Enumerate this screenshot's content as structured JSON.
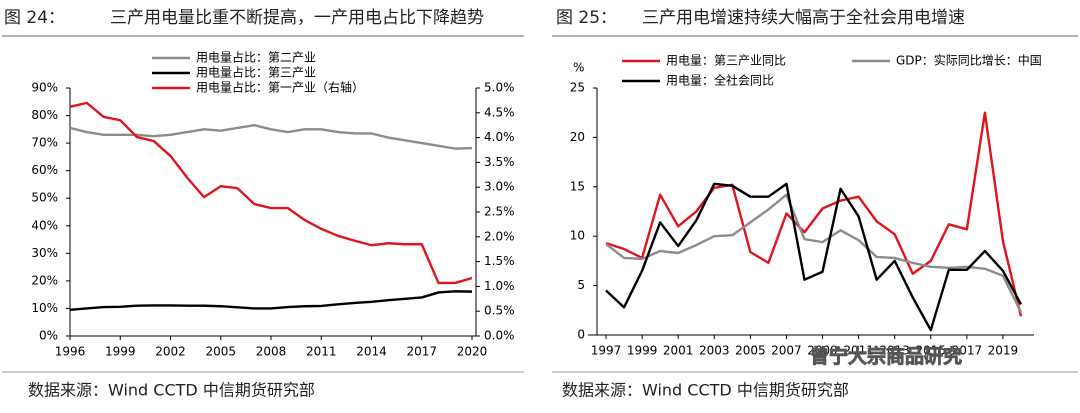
{
  "chart_data": [
    {
      "type": "line",
      "figure_label": "图 24：",
      "title": "三产用电量比重不断提高，一产用电占比下降趋势",
      "x": [
        1996,
        1997,
        1998,
        1999,
        2000,
        2001,
        2002,
        2003,
        2004,
        2005,
        2006,
        2007,
        2008,
        2009,
        2010,
        2011,
        2012,
        2013,
        2014,
        2015,
        2016,
        2017,
        2018,
        2019,
        2020
      ],
      "series": [
        {
          "name": "用电量占比：第二产业",
          "color": "#8c8c8c",
          "values": [
            75.5,
            74,
            73,
            73,
            73,
            72.5,
            73,
            74,
            75,
            74.5,
            75.5,
            76.5,
            75,
            74,
            75,
            75,
            74,
            73.5,
            73.5,
            72,
            71,
            70,
            69,
            68,
            68.2
          ]
        },
        {
          "name": "用电量占比：第三产业",
          "color": "#000000",
          "values": [
            9.5,
            10,
            10.5,
            10.6,
            11,
            11.1,
            11.1,
            11,
            11,
            10.8,
            10.4,
            10,
            10,
            10.5,
            10.8,
            10.9,
            11.5,
            12,
            12.4,
            13,
            13.5,
            14,
            15.8,
            16.2,
            16.1
          ]
        },
        {
          "name": "用电量占比：第一产业（右轴）",
          "color": "#e0141e",
          "axis": "y2",
          "values": [
            4.62,
            4.7,
            4.42,
            4.35,
            4.01,
            3.93,
            3.63,
            3.19,
            2.8,
            3.02,
            2.98,
            2.66,
            2.58,
            2.58,
            2.34,
            2.16,
            2.02,
            1.92,
            1.83,
            1.87,
            1.85,
            1.85,
            1.07,
            1.07,
            1.17
          ]
        }
      ],
      "xlim": [
        1996,
        2020
      ],
      "xticks": [
        1996,
        1999,
        2002,
        2005,
        2008,
        2011,
        2014,
        2017,
        2020
      ],
      "ylim": [
        0,
        90
      ],
      "yticks": [
        {
          "value": 0,
          "label": "0%"
        },
        {
          "value": 10,
          "label": "10%"
        },
        {
          "value": 20,
          "label": "20%"
        },
        {
          "value": 30,
          "label": "30%"
        },
        {
          "value": 40,
          "label": "40%"
        },
        {
          "value": 50,
          "label": "50%"
        },
        {
          "value": 60,
          "label": "60%"
        },
        {
          "value": 70,
          "label": "70%"
        },
        {
          "value": 80,
          "label": "80%"
        },
        {
          "value": 90,
          "label": "90%"
        }
      ],
      "y2lim": [
        0,
        5
      ],
      "y2ticks": [
        {
          "value": 0,
          "label": "0.0%"
        },
        {
          "value": 0.5,
          "label": "0.5%"
        },
        {
          "value": 1,
          "label": "1.0%"
        },
        {
          "value": 1.5,
          "label": "1.5%"
        },
        {
          "value": 2,
          "label": "2.0%"
        },
        {
          "value": 2.5,
          "label": "2.5%"
        },
        {
          "value": 3,
          "label": "3.0%"
        },
        {
          "value": 3.5,
          "label": "3.5%"
        },
        {
          "value": 4,
          "label": "4.0%"
        },
        {
          "value": 4.5,
          "label": "4.5%"
        },
        {
          "value": 5,
          "label": "5.0%"
        }
      ],
      "grid": false,
      "source": "数据来源：Wind CCTD 中信期货研究部"
    },
    {
      "type": "line",
      "figure_label": "图 25：",
      "title": "三产用电增速持续大幅高于全社会用电增速",
      "ylabel": "%",
      "x": [
        1997,
        1998,
        1999,
        2000,
        2001,
        2002,
        2003,
        2004,
        2005,
        2006,
        2007,
        2008,
        2009,
        2010,
        2011,
        2012,
        2013,
        2014,
        2015,
        2016,
        2017,
        2018,
        2019,
        2020
      ],
      "series": [
        {
          "name": "用电量：第三产业同比",
          "color": "#e0141e",
          "values": [
            9.3,
            8.7,
            7.8,
            14.2,
            11,
            12.5,
            14.9,
            15.2,
            8.4,
            7.3,
            12.3,
            10.4,
            12.8,
            13.6,
            14,
            11.5,
            10.2,
            6.2,
            7.5,
            11.2,
            10.7,
            22.5,
            9.5,
            1.9
          ]
        },
        {
          "name": "GDP：实际同比增长：中国",
          "color": "#8c8c8c",
          "values": [
            9.2,
            7.8,
            7.7,
            8.5,
            8.3,
            9.1,
            10,
            10.1,
            11.4,
            12.7,
            14.2,
            9.7,
            9.4,
            10.6,
            9.6,
            7.9,
            7.8,
            7.3,
            6.9,
            6.8,
            6.9,
            6.7,
            6,
            2.3
          ]
        },
        {
          "name": "用电量：全社会同比",
          "color": "#000000",
          "values": [
            4.5,
            2.8,
            6.5,
            11.4,
            9,
            11.6,
            15.3,
            15.1,
            14,
            14,
            15.3,
            5.6,
            6.4,
            14.8,
            12,
            5.6,
            7.5,
            3.8,
            0.5,
            6.6,
            6.6,
            8.5,
            6.5,
            3.1
          ]
        }
      ],
      "xlim": [
        1996.5,
        2020.5
      ],
      "xticks": [
        1997,
        1999,
        2001,
        2003,
        2005,
        2007,
        2009,
        2011,
        2013,
        2015,
        2017,
        2019
      ],
      "ylim": [
        0,
        25
      ],
      "yticks": [
        0,
        5,
        10,
        15,
        20,
        25
      ],
      "grid": false,
      "watermark": "曾宁大宗商品研究",
      "source": "数据来源：Wind CCTD 中信期货研究部"
    }
  ]
}
